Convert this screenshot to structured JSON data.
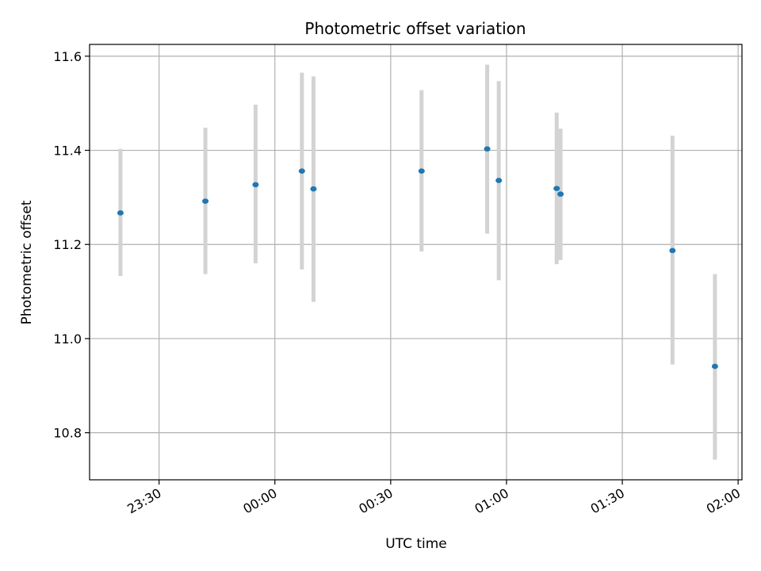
{
  "chart_data": {
    "type": "scatter",
    "title": "Photometric offset variation",
    "xlabel": "UTC time",
    "ylabel": "Photometric offset",
    "x_ticks": [
      "23:30",
      "00:00",
      "00:30",
      "01:00",
      "01:30",
      "02:00"
    ],
    "y_ticks": [
      "10.8",
      "11.0",
      "11.2",
      "11.4",
      "11.6"
    ],
    "xlim": [
      "23:12",
      "02:01"
    ],
    "ylim": [
      10.7,
      11.625
    ],
    "grid": true,
    "points": [
      {
        "time": "23:20",
        "y": 11.267,
        "err_low": 11.133,
        "err_high": 11.403
      },
      {
        "time": "23:42",
        "y": 11.292,
        "err_low": 11.137,
        "err_high": 11.448
      },
      {
        "time": "23:55",
        "y": 11.327,
        "err_low": 11.16,
        "err_high": 11.497
      },
      {
        "time": "00:07",
        "y": 11.356,
        "err_low": 11.147,
        "err_high": 11.565
      },
      {
        "time": "00:10",
        "y": 11.318,
        "err_low": 11.078,
        "err_high": 11.557
      },
      {
        "time": "00:38",
        "y": 11.356,
        "err_low": 11.185,
        "err_high": 11.528
      },
      {
        "time": "00:55",
        "y": 11.403,
        "err_low": 11.223,
        "err_high": 11.582
      },
      {
        "time": "00:58",
        "y": 11.336,
        "err_low": 11.124,
        "err_high": 11.547
      },
      {
        "time": "01:13",
        "y": 11.319,
        "err_low": 11.158,
        "err_high": 11.48
      },
      {
        "time": "01:14",
        "y": 11.307,
        "err_low": 11.167,
        "err_high": 11.446
      },
      {
        "time": "01:43",
        "y": 11.187,
        "err_low": 10.945,
        "err_high": 11.431
      },
      {
        "time": "01:54",
        "y": 10.941,
        "err_low": 10.743,
        "err_high": 11.137
      }
    ],
    "colors": {
      "marker": "#1f77b4",
      "errorbar": "#d3d3d3",
      "grid": "#b0b0b0",
      "axis": "#000000"
    }
  }
}
